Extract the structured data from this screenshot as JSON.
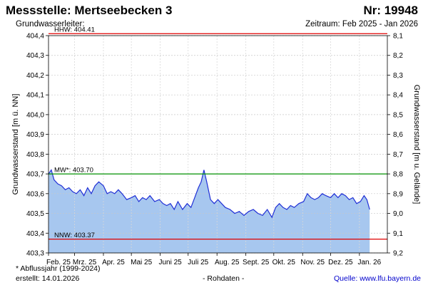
{
  "header": {
    "title": "Messstelle: Mertseebecken 3",
    "number": "Nr: 19948",
    "subtitle_left": "Grundwasserleiter:",
    "subtitle_right": "Zeitraum: Feb 2025 - Jan 2026"
  },
  "footer": {
    "note": "* Abflussjahr (1999-2024)",
    "created": "erstellt:  14.01.2026",
    "raw": "- Rohdaten -",
    "source_prefix": "Quelle: ",
    "source_link": "www.lfu.bayern.de"
  },
  "colors": {
    "fill": "#a7c7ef",
    "line": "#1f2fd6",
    "hhw": "#e00000",
    "nnw": "#e00000",
    "mw": "#009000",
    "grid": "#c8c8c8"
  },
  "chart_data": {
    "type": "area",
    "ylabel": "Grundwasserstand [m ü. NN]",
    "ylabel_right": "Grundwasserstand [m u. Gelände]",
    "ylim": [
      403.3,
      404.4
    ],
    "y_ticks": [
      "404,4",
      "404,3",
      "404,2",
      "404,1",
      "404,0",
      "403,9",
      "403,8",
      "403,7",
      "403,6",
      "403,5",
      "403,4",
      "403,3"
    ],
    "y2_ticks": [
      "8,1",
      "8,2",
      "8,3",
      "8,4",
      "8,5",
      "8,6",
      "8,7",
      "8,8",
      "8,9",
      "9,0",
      "9,1",
      "9,2"
    ],
    "y2_ticks_values": [
      8.1,
      8.2,
      8.3,
      8.4,
      8.5,
      8.6,
      8.7,
      8.8,
      8.9,
      9.0,
      9.1,
      9.2
    ],
    "x_ticks": [
      "Feb. 25",
      "Mrz. 25",
      "Apr. 25",
      "Mai 25",
      "Juni 25",
      "Juli 25",
      "Aug. 25",
      "Sept. 25",
      "Okt. 25",
      "Nov. 25",
      "Dez. 25",
      "Jan. 26"
    ],
    "x_tick_dates": [
      "2025-02-01",
      "2025-03-01",
      "2025-04-01",
      "2025-05-01",
      "2025-06-01",
      "2025-07-01",
      "2025-08-01",
      "2025-09-01",
      "2025-10-01",
      "2025-11-01",
      "2025-12-01",
      "2026-01-01"
    ],
    "xlim": [
      "2025-02-01",
      "2026-01-31"
    ],
    "grid": true,
    "reference_lines": [
      {
        "name": "HHW",
        "label": "HHW: 404.41",
        "value": 404.41
      },
      {
        "name": "MW",
        "label": "MW*: 403.70",
        "value": 403.7
      },
      {
        "name": "NNW",
        "label": "NNW: 403.37",
        "value": 403.37
      }
    ],
    "series": [
      {
        "x": [
          "2025-02-01",
          "2025-02-04",
          "2025-02-07",
          "2025-02-11",
          "2025-02-15",
          "2025-02-19",
          "2025-02-23",
          "2025-02-27",
          "2025-03-03",
          "2025-03-07",
          "2025-03-11",
          "2025-03-15",
          "2025-03-19",
          "2025-03-23",
          "2025-03-27",
          "2025-04-01",
          "2025-04-05",
          "2025-04-09",
          "2025-04-13",
          "2025-04-17",
          "2025-04-21",
          "2025-04-26",
          "2025-05-01",
          "2025-05-05",
          "2025-05-09",
          "2025-05-13",
          "2025-05-17",
          "2025-05-21",
          "2025-05-26",
          "2025-05-31",
          "2025-06-04",
          "2025-06-08",
          "2025-06-12",
          "2025-06-16",
          "2025-06-20",
          "2025-06-25",
          "2025-06-30",
          "2025-07-04",
          "2025-07-08",
          "2025-07-12",
          "2025-07-15",
          "2025-07-18",
          "2025-07-21",
          "2025-07-25",
          "2025-07-29",
          "2025-08-02",
          "2025-08-06",
          "2025-08-10",
          "2025-08-15",
          "2025-08-20",
          "2025-08-25",
          "2025-08-30",
          "2025-09-04",
          "2025-09-09",
          "2025-09-14",
          "2025-09-19",
          "2025-09-24",
          "2025-09-29",
          "2025-10-03",
          "2025-10-07",
          "2025-10-11",
          "2025-10-15",
          "2025-10-19",
          "2025-10-23",
          "2025-10-28",
          "2025-11-02",
          "2025-11-06",
          "2025-11-10",
          "2025-11-14",
          "2025-11-18",
          "2025-11-22",
          "2025-11-26",
          "2025-12-01",
          "2025-12-05",
          "2025-12-09",
          "2025-12-13",
          "2025-12-17",
          "2025-12-21",
          "2025-12-25",
          "2025-12-29",
          "2026-01-02",
          "2026-01-06",
          "2026-01-09",
          "2026-01-12"
        ],
        "values": [
          403.7,
          403.72,
          403.67,
          403.65,
          403.64,
          403.62,
          403.63,
          403.61,
          403.6,
          403.62,
          403.59,
          403.63,
          403.6,
          403.64,
          403.66,
          403.64,
          403.6,
          403.61,
          403.6,
          403.62,
          403.6,
          403.57,
          403.58,
          403.59,
          403.56,
          403.58,
          403.57,
          403.59,
          403.56,
          403.57,
          403.55,
          403.54,
          403.55,
          403.52,
          403.56,
          403.52,
          403.55,
          403.53,
          403.58,
          403.63,
          403.66,
          403.72,
          403.66,
          403.57,
          403.55,
          403.57,
          403.55,
          403.53,
          403.52,
          403.5,
          403.51,
          403.49,
          403.51,
          403.52,
          403.5,
          403.49,
          403.52,
          403.48,
          403.53,
          403.55,
          403.53,
          403.52,
          403.54,
          403.53,
          403.55,
          403.56,
          403.6,
          403.58,
          403.57,
          403.58,
          403.6,
          403.59,
          403.58,
          403.6,
          403.58,
          403.6,
          403.59,
          403.57,
          403.58,
          403.55,
          403.56,
          403.59,
          403.57,
          403.52
        ]
      }
    ]
  }
}
